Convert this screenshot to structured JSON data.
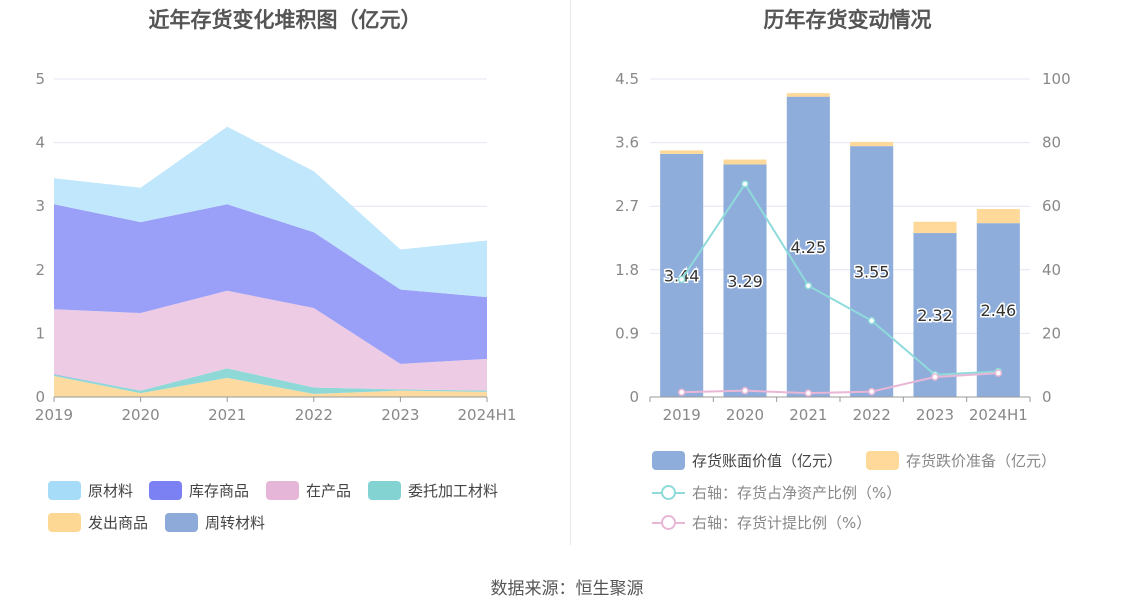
{
  "footer": {
    "source": "数据来源：恒生聚源"
  },
  "chart_data": [
    {
      "type": "area",
      "stacked": true,
      "title": "近年存货变化堆积图（亿元）",
      "categories": [
        "2019",
        "2020",
        "2021",
        "2022",
        "2023",
        "2024H1"
      ],
      "ylim": [
        0,
        5
      ],
      "yticks": [
        "0",
        "1",
        "2",
        "3",
        "4",
        "5"
      ],
      "grid": true,
      "legend_position": "bottom",
      "series": [
        {
          "name": "发出商品",
          "color": "#fcdaa0",
          "values": [
            0.33,
            0.06,
            0.3,
            0.05,
            0.1,
            0.08
          ]
        },
        {
          "name": "委托加工材料",
          "color": "#8fd8d8",
          "values": [
            0.02,
            0.04,
            0.15,
            0.1,
            0.02,
            0.02
          ]
        },
        {
          "name": "周转材料",
          "color": "#8eaad8",
          "values": [
            0.01,
            0.0,
            0.0,
            0.0,
            0.0,
            0.0
          ]
        },
        {
          "name": "在产品",
          "color": "#eecbe4",
          "values": [
            1.02,
            1.22,
            1.22,
            1.25,
            0.4,
            0.5
          ]
        },
        {
          "name": "库存商品",
          "color": "#9aa0f8",
          "values": [
            1.65,
            1.43,
            1.36,
            1.19,
            1.17,
            0.97
          ]
        },
        {
          "name": "原材料",
          "color": "#c0e7fb",
          "values": [
            0.41,
            0.54,
            1.22,
            0.96,
            0.63,
            0.89
          ]
        }
      ],
      "legend": [
        {
          "name": "原材料",
          "color": "#a6dcf8"
        },
        {
          "name": "库存商品",
          "color": "#7b80f2"
        },
        {
          "name": "在产品",
          "color": "#e6b6d8"
        },
        {
          "name": "委托加工材料",
          "color": "#84d3d3"
        },
        {
          "name": "发出商品",
          "color": "#fdd894"
        },
        {
          "name": "周转材料",
          "color": "#8eaad8"
        }
      ]
    },
    {
      "type": "bar",
      "stacked": true,
      "title": "历年存货变动情况",
      "categories": [
        "2019",
        "2020",
        "2021",
        "2022",
        "2023",
        "2024H1"
      ],
      "ylim_left": [
        0,
        4.5
      ],
      "yticks_left": [
        "0",
        "0.9",
        "1.8",
        "2.7",
        "3.6",
        "4.5"
      ],
      "ylim_right": [
        0,
        100
      ],
      "yticks_right": [
        "0",
        "20",
        "40",
        "60",
        "80",
        "100"
      ],
      "grid": true,
      "legend_position": "bottom",
      "series": [
        {
          "name": "存货账面价值（亿元）",
          "color": "#8eaddb",
          "values": [
            3.44,
            3.29,
            4.25,
            3.55,
            2.32,
            2.46
          ],
          "labels": [
            "3.44",
            "3.29",
            "4.25",
            "3.55",
            "2.32",
            "2.46"
          ]
        },
        {
          "name": "存货跌价准备（亿元）",
          "color": "#fed99a",
          "values": [
            0.05,
            0.07,
            0.05,
            0.06,
            0.16,
            0.2
          ]
        }
      ],
      "line_series": [
        {
          "name": "右轴：存货占净资产比例（%）",
          "color": "#8fdada",
          "values": [
            37,
            67,
            35,
            24,
            7,
            8
          ]
        },
        {
          "name": "右轴：存货计提比例（%）",
          "color": "#eab6d6",
          "values": [
            1.5,
            2,
            1.2,
            1.7,
            6.3,
            7.5
          ]
        }
      ]
    }
  ]
}
